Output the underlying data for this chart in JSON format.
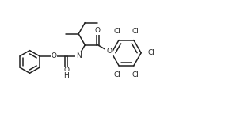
{
  "background": "#ffffff",
  "line_color": "#222222",
  "line_width": 1.1,
  "font_size": 6.5,
  "fig_width": 3.13,
  "fig_height": 1.59,
  "dpi": 100,
  "xlim": [
    0,
    10
  ],
  "ylim": [
    0,
    5
  ]
}
